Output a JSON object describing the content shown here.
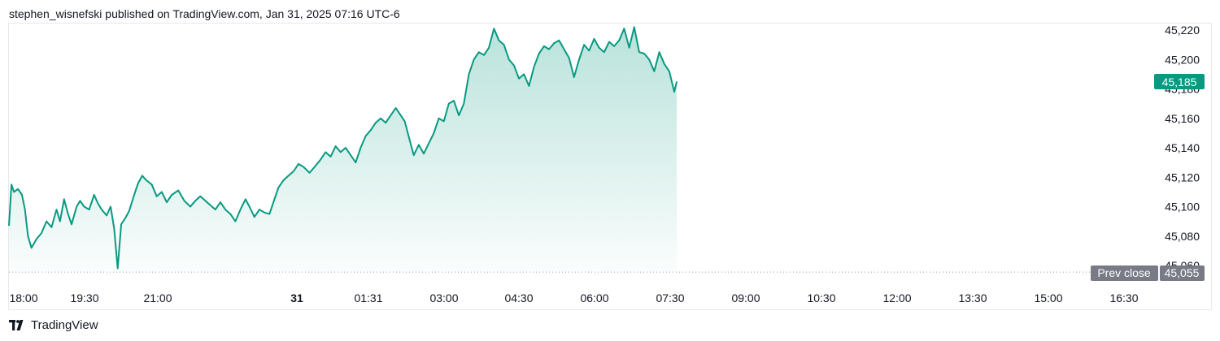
{
  "header": {
    "attribution": "stephen_wisnefski published on TradingView.com, Jan 31, 2025 07:16 UTC-6"
  },
  "footer": {
    "brand": "TradingView",
    "logo_icon": "tradingview-logo-icon"
  },
  "colors": {
    "line": "#089981",
    "fill_top": "#089981",
    "price_badge": "#089981",
    "prev_close_badge": "#787b86",
    "dotted_line": "#9598a1"
  },
  "badges": {
    "current_price": "45,185",
    "prev_close_label": "Prev close",
    "prev_close_value": "45,055"
  },
  "chart_data": {
    "type": "area",
    "title": "",
    "xlabel": "",
    "ylabel": "",
    "ylim": [
      45050,
      45225
    ],
    "grid": false,
    "yticks": [
      "45,060",
      "45,080",
      "45,100",
      "45,120",
      "45,140",
      "45,160",
      "45,180",
      "45,200",
      "45,220"
    ],
    "ytick_values": [
      45060,
      45080,
      45100,
      45120,
      45140,
      45160,
      45180,
      45200,
      45220
    ],
    "xticks": [
      "18:00",
      "19:30",
      "21:00",
      "31",
      "01:31",
      "03:00",
      "04:30",
      "06:00",
      "07:30",
      "09:00",
      "10:30",
      "12:00",
      "13:30",
      "15:00",
      "16:30"
    ],
    "xtick_bold": "31",
    "x_unit": "hours since 18:00 (Jan 30 session start)",
    "prev_close": 45055,
    "last_price": 45185,
    "series": [
      {
        "values": [
          [
            0.0,
            45087
          ],
          [
            0.05,
            45115
          ],
          [
            0.1,
            45110
          ],
          [
            0.18,
            45112
          ],
          [
            0.26,
            45108
          ],
          [
            0.32,
            45098
          ],
          [
            0.38,
            45080
          ],
          [
            0.45,
            45072
          ],
          [
            0.55,
            45078
          ],
          [
            0.65,
            45082
          ],
          [
            0.75,
            45090
          ],
          [
            0.85,
            45086
          ],
          [
            0.95,
            45098
          ],
          [
            1.02,
            45090
          ],
          [
            1.1,
            45105
          ],
          [
            1.18,
            45095
          ],
          [
            1.25,
            45088
          ],
          [
            1.35,
            45100
          ],
          [
            1.42,
            45104
          ],
          [
            1.5,
            45100
          ],
          [
            1.6,
            45098
          ],
          [
            1.7,
            45108
          ],
          [
            1.78,
            45102
          ],
          [
            1.85,
            45098
          ],
          [
            1.95,
            45094
          ],
          [
            2.03,
            45100
          ],
          [
            2.1,
            45085
          ],
          [
            2.17,
            45058
          ],
          [
            2.24,
            45088
          ],
          [
            2.32,
            45092
          ],
          [
            2.4,
            45097
          ],
          [
            2.5,
            45108
          ],
          [
            2.58,
            45116
          ],
          [
            2.66,
            45121
          ],
          [
            2.74,
            45118
          ],
          [
            2.85,
            45115
          ],
          [
            2.95,
            45107
          ],
          [
            3.05,
            45110
          ],
          [
            3.15,
            45103
          ],
          [
            3.25,
            45108
          ],
          [
            3.38,
            45111
          ],
          [
            3.5,
            45104
          ],
          [
            3.62,
            45100
          ],
          [
            3.72,
            45104
          ],
          [
            3.82,
            45107
          ],
          [
            3.92,
            45104
          ],
          [
            4.02,
            45101
          ],
          [
            4.12,
            45098
          ],
          [
            4.22,
            45103
          ],
          [
            4.32,
            45098
          ],
          [
            4.42,
            45095
          ],
          [
            4.52,
            45090
          ],
          [
            4.62,
            45098
          ],
          [
            4.72,
            45105
          ],
          [
            4.8,
            45100
          ],
          [
            4.9,
            45093
          ],
          [
            5.0,
            45098
          ],
          [
            5.1,
            45096
          ],
          [
            5.2,
            45095
          ],
          [
            5.28,
            45103
          ],
          [
            5.38,
            45113
          ],
          [
            5.48,
            45118
          ],
          [
            5.58,
            45121
          ],
          [
            5.68,
            45124
          ],
          [
            5.78,
            45129
          ],
          [
            5.88,
            45127
          ],
          [
            6.0,
            45123
          ],
          [
            6.1,
            45127
          ],
          [
            6.22,
            45132
          ],
          [
            6.32,
            45137
          ],
          [
            6.42,
            45134
          ],
          [
            6.52,
            45141
          ],
          [
            6.62,
            45137
          ],
          [
            6.72,
            45140
          ],
          [
            6.82,
            45135
          ],
          [
            6.92,
            45130
          ],
          [
            7.02,
            45140
          ],
          [
            7.12,
            45148
          ],
          [
            7.22,
            45152
          ],
          [
            7.32,
            45157
          ],
          [
            7.42,
            45160
          ],
          [
            7.52,
            45157
          ],
          [
            7.62,
            45162
          ],
          [
            7.72,
            45167
          ],
          [
            7.82,
            45162
          ],
          [
            7.9,
            45158
          ],
          [
            8.0,
            45145
          ],
          [
            8.08,
            45135
          ],
          [
            8.18,
            45142
          ],
          [
            8.28,
            45136
          ],
          [
            8.38,
            45143
          ],
          [
            8.48,
            45150
          ],
          [
            8.58,
            45160
          ],
          [
            8.68,
            45158
          ],
          [
            8.78,
            45170
          ],
          [
            8.88,
            45172
          ],
          [
            8.98,
            45162
          ],
          [
            9.08,
            45170
          ],
          [
            9.18,
            45190
          ],
          [
            9.28,
            45200
          ],
          [
            9.38,
            45205
          ],
          [
            9.48,
            45203
          ],
          [
            9.58,
            45208
          ],
          [
            9.68,
            45221
          ],
          [
            9.78,
            45213
          ],
          [
            9.88,
            45210
          ],
          [
            9.98,
            45200
          ],
          [
            10.08,
            45196
          ],
          [
            10.18,
            45187
          ],
          [
            10.28,
            45190
          ],
          [
            10.38,
            45182
          ],
          [
            10.48,
            45195
          ],
          [
            10.58,
            45204
          ],
          [
            10.68,
            45209
          ],
          [
            10.78,
            45207
          ],
          [
            10.88,
            45211
          ],
          [
            10.98,
            45213
          ],
          [
            11.08,
            45207
          ],
          [
            11.18,
            45201
          ],
          [
            11.28,
            45188
          ],
          [
            11.38,
            45200
          ],
          [
            11.48,
            45210
          ],
          [
            11.58,
            45206
          ],
          [
            11.68,
            45214
          ],
          [
            11.78,
            45208
          ],
          [
            11.88,
            45205
          ],
          [
            11.98,
            45212
          ],
          [
            12.08,
            45209
          ],
          [
            12.18,
            45213
          ],
          [
            12.28,
            45221
          ],
          [
            12.38,
            45208
          ],
          [
            12.48,
            45222
          ],
          [
            12.58,
            45205
          ],
          [
            12.68,
            45204
          ],
          [
            12.78,
            45200
          ],
          [
            12.88,
            45192
          ],
          [
            12.98,
            45205
          ],
          [
            13.08,
            45197
          ],
          [
            13.18,
            45192
          ],
          [
            13.28,
            45178
          ],
          [
            13.33,
            45185
          ]
        ]
      }
    ]
  }
}
